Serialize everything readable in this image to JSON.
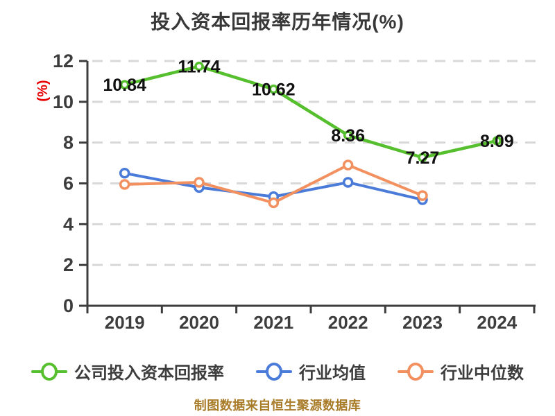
{
  "chart_data": {
    "type": "line",
    "title": "投入资本回报率历年情况(%)",
    "ylabel": "(%)",
    "caption": "制图数据来自恒生聚源数据库",
    "categories": [
      "2019",
      "2020",
      "2021",
      "2022",
      "2023",
      "2024"
    ],
    "ylim": [
      0,
      12
    ],
    "yticks": [
      0,
      2,
      4,
      6,
      8,
      10,
      12
    ],
    "grid": "horizontal-dashed",
    "legend_position": "bottom",
    "series": [
      {
        "name": "公司投入资本回报率",
        "color": "#56bf2d",
        "values": [
          10.84,
          11.74,
          10.62,
          8.36,
          7.27,
          8.09
        ],
        "labels": [
          "10.84",
          "11.74",
          "10.62",
          "8.36",
          "7.27",
          "8.09"
        ],
        "show_labels": true
      },
      {
        "name": "行业均值",
        "color": "#4a7bd9",
        "values": [
          6.5,
          5.8,
          5.35,
          6.05,
          5.2,
          null
        ],
        "labels": [],
        "show_labels": false
      },
      {
        "name": "行业中位数",
        "color": "#f2915f",
        "values": [
          5.95,
          6.05,
          5.05,
          6.9,
          5.4,
          null
        ],
        "labels": [],
        "show_labels": false
      }
    ],
    "colors": {
      "axis": "#3d3d3d",
      "grid": "#d8d8d8",
      "title": "#383838",
      "value_label": "#111111",
      "ylabel_red": "#e60000",
      "caption": "#a87b28"
    }
  }
}
